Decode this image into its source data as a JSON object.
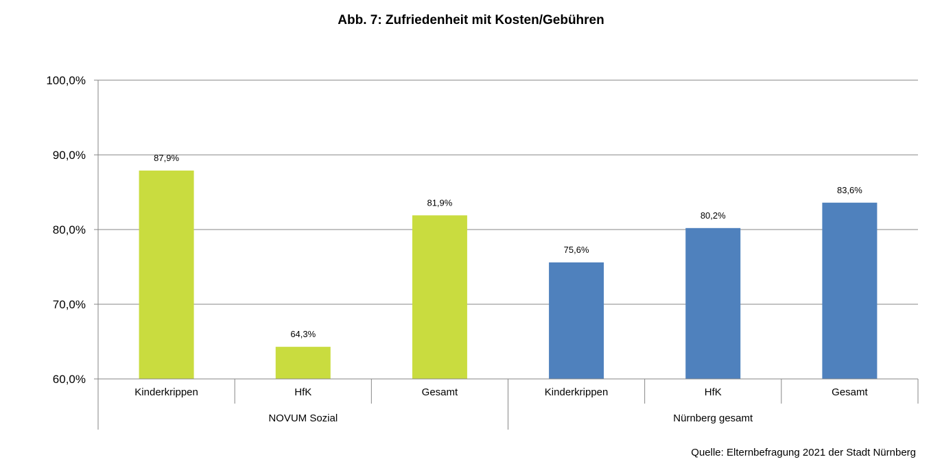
{
  "chart_data": {
    "type": "bar",
    "title": "Abb. 7: Zufriedenheit mit Kosten/Gebühren",
    "xlabel": "",
    "ylabel": "",
    "ylim": [
      60,
      100
    ],
    "yticks": [
      60,
      70,
      80,
      90,
      100
    ],
    "ytick_labels": [
      "60,0%",
      "70,0%",
      "80,0%",
      "90,0%",
      "100,0%"
    ],
    "grid": true,
    "legend": "none",
    "groups": [
      "NOVUM Sozial",
      "Nürnberg gesamt"
    ],
    "categories": [
      "Kinderkrippen",
      "HfK",
      "Gesamt",
      "Kinderkrippen",
      "HfK",
      "Gesamt"
    ],
    "category_group": [
      0,
      0,
      0,
      1,
      1,
      1
    ],
    "values": [
      87.9,
      64.3,
      81.9,
      75.6,
      80.2,
      83.6
    ],
    "value_labels": [
      "87,9%",
      "64,3%",
      "81,9%",
      "75,6%",
      "80,2%",
      "83,6%"
    ],
    "group_colors": [
      "#c9dc3f",
      "#4f81bd"
    ]
  },
  "source": "Quelle: Elternbefragung 2021 der Stadt Nürnberg"
}
